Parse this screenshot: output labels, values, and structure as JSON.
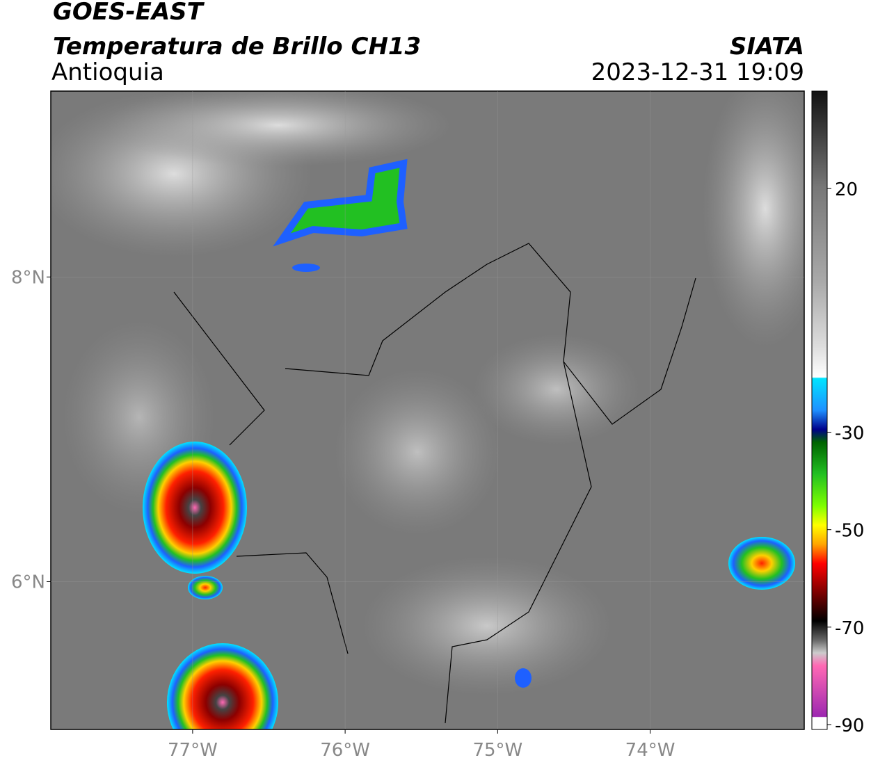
{
  "header": {
    "title": "GOES-EAST",
    "subtitle": "Temperatura de Brillo CH13",
    "region": "Antioquia",
    "source": "SIATA",
    "datetime": "2023-12-31 19:09"
  },
  "map": {
    "xlim": [
      -77.93,
      -72.99
    ],
    "ylim": [
      5.03,
      9.22
    ],
    "xticks": [
      {
        "value": -77,
        "label": "77°W"
      },
      {
        "value": -76,
        "label": "76°W"
      },
      {
        "value": -75,
        "label": "75°W"
      },
      {
        "value": -74,
        "label": "74°W"
      }
    ],
    "yticks": [
      {
        "value": 6,
        "label": "6°N"
      },
      {
        "value": 8,
        "label": "8°N"
      }
    ],
    "grid": true
  },
  "colorbar": {
    "lim": [
      -91,
      40
    ],
    "ticks": [
      20,
      -30,
      -50,
      -70,
      -90
    ]
  }
}
